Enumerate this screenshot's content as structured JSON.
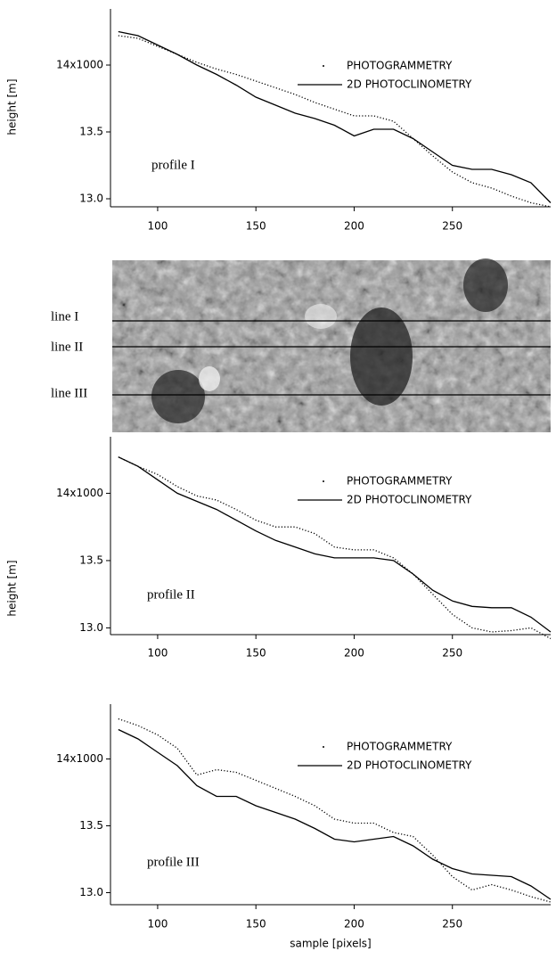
{
  "chart_data": [
    {
      "type": "line",
      "annotation": "profile I",
      "ylabel": "height [m]",
      "x": [
        80,
        90,
        100,
        110,
        120,
        130,
        140,
        150,
        160,
        170,
        180,
        190,
        200,
        210,
        220,
        230,
        240,
        250,
        260,
        270,
        280,
        290,
        300
      ],
      "series": [
        {
          "name": "PHOTOGRAMMETRY",
          "color": "#000000",
          "style": "dotted",
          "values": [
            14.22,
            14.2,
            14.14,
            14.08,
            14.02,
            13.97,
            13.93,
            13.88,
            13.83,
            13.78,
            13.72,
            13.67,
            13.62,
            13.62,
            13.58,
            13.45,
            13.32,
            13.2,
            13.12,
            13.08,
            13.02,
            12.97,
            12.94
          ]
        },
        {
          "name": "2D PHOTOCLINOMETRY",
          "color": "#000000",
          "style": "solid",
          "values": [
            14.25,
            14.22,
            14.15,
            14.08,
            14.0,
            13.93,
            13.85,
            13.76,
            13.7,
            13.64,
            13.6,
            13.55,
            13.47,
            13.52,
            13.52,
            13.45,
            13.35,
            13.25,
            13.22,
            13.22,
            13.18,
            13.12,
            12.97
          ]
        }
      ],
      "xlim": [
        76,
        300
      ],
      "xticks": [
        100,
        150,
        200,
        250
      ],
      "ylim": [
        12.94,
        14.42
      ],
      "yticks": [
        {
          "value": 13,
          "label": "13.0"
        },
        13.5,
        {
          "value": 14,
          "label": "14x1000"
        }
      ]
    },
    {
      "type": "line",
      "annotation": "profile II",
      "ylabel": "height [m]",
      "x": [
        80,
        90,
        100,
        110,
        120,
        130,
        140,
        150,
        160,
        170,
        180,
        190,
        200,
        210,
        220,
        230,
        240,
        250,
        260,
        270,
        280,
        290,
        300
      ],
      "series": [
        {
          "name": "PHOTOGRAMMETRY",
          "color": "#000000",
          "style": "dotted",
          "values": [
            14.27,
            14.2,
            14.14,
            14.05,
            13.98,
            13.95,
            13.88,
            13.8,
            13.75,
            13.75,
            13.7,
            13.6,
            13.58,
            13.58,
            13.52,
            13.4,
            13.25,
            13.1,
            13.0,
            12.97,
            12.98,
            13.0,
            12.92
          ]
        },
        {
          "name": "2D PHOTOCLINOMETRY",
          "color": "#000000",
          "style": "solid",
          "values": [
            14.27,
            14.2,
            14.1,
            14.0,
            13.94,
            13.88,
            13.8,
            13.72,
            13.65,
            13.6,
            13.55,
            13.52,
            13.52,
            13.52,
            13.5,
            13.4,
            13.28,
            13.2,
            13.16,
            13.15,
            13.15,
            13.08,
            12.97
          ]
        }
      ],
      "xlim": [
        76,
        300
      ],
      "xticks": [
        100,
        150,
        200,
        250
      ],
      "ylim": [
        12.95,
        14.42
      ],
      "yticks": [
        {
          "value": 13,
          "label": "13.0"
        },
        13.5,
        {
          "value": 14,
          "label": "14x1000"
        }
      ]
    },
    {
      "type": "line",
      "annotation": "profile III",
      "xlabel": "sample [pixels]",
      "x": [
        80,
        90,
        100,
        110,
        120,
        130,
        140,
        150,
        160,
        170,
        180,
        190,
        200,
        210,
        220,
        230,
        240,
        250,
        260,
        270,
        280,
        290,
        300
      ],
      "series": [
        {
          "name": "PHOTOGRAMMETRY",
          "color": "#000000",
          "style": "dotted",
          "values": [
            14.3,
            14.25,
            14.18,
            14.08,
            13.88,
            13.92,
            13.9,
            13.84,
            13.78,
            13.72,
            13.65,
            13.55,
            13.52,
            13.52,
            13.45,
            13.42,
            13.28,
            13.12,
            13.02,
            13.06,
            13.02,
            12.97,
            12.93
          ]
        },
        {
          "name": "2D PHOTOCLINOMETRY",
          "color": "#000000",
          "style": "solid",
          "values": [
            14.22,
            14.15,
            14.05,
            13.95,
            13.8,
            13.72,
            13.72,
            13.65,
            13.6,
            13.55,
            13.48,
            13.4,
            13.38,
            13.4,
            13.42,
            13.35,
            13.25,
            13.18,
            13.14,
            13.13,
            13.12,
            13.05,
            12.95
          ]
        }
      ],
      "xlim": [
        76,
        300
      ],
      "xticks": [
        100,
        150,
        200,
        250
      ],
      "ylim": [
        12.91,
        14.41
      ],
      "yticks": [
        {
          "value": 13,
          "label": "13.0"
        },
        13.5,
        {
          "value": 14,
          "label": "14x1000"
        }
      ]
    }
  ],
  "image": {
    "line_labels": [
      "line I",
      "line II",
      "line III"
    ]
  }
}
